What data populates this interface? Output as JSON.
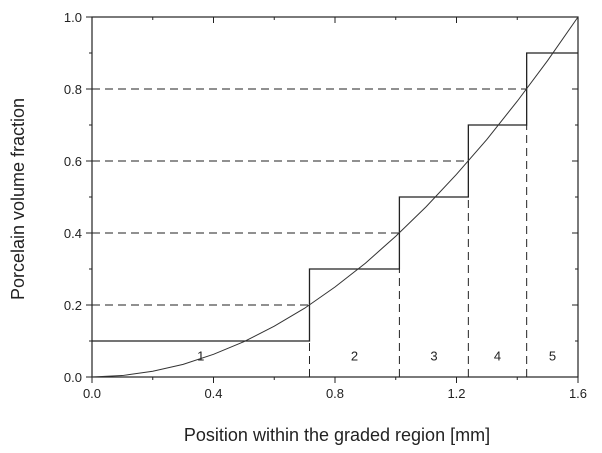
{
  "chart_data": {
    "type": "line",
    "xlabel": "Position within the graded region [mm]",
    "ylabel": "Porcelain volume fraction",
    "xlim": [
      0,
      1.6
    ],
    "ylim": [
      0,
      1.0
    ],
    "xticks": [
      0.0,
      0.4,
      0.8,
      1.2,
      1.6
    ],
    "xtick_labels": [
      "0.0",
      "0.4",
      "0.8",
      "1.2",
      "1.6"
    ],
    "yticks": [
      0.0,
      0.2,
      0.4,
      0.6,
      0.8,
      1.0
    ],
    "ytick_labels": [
      "0.0",
      "0.2",
      "0.4",
      "0.6",
      "0.8",
      "1.0"
    ],
    "grid": false,
    "series": [
      {
        "style": "smooth curve, thin solid",
        "x": [
          0,
          0.1,
          0.2,
          0.3,
          0.4,
          0.5,
          0.6,
          0.7,
          0.8,
          0.9,
          1.0,
          1.1,
          1.2,
          1.3,
          1.4,
          1.5,
          1.6
        ],
        "y": [
          0,
          0.004,
          0.016,
          0.035,
          0.063,
          0.098,
          0.141,
          0.191,
          0.25,
          0.316,
          0.391,
          0.473,
          0.563,
          0.66,
          0.766,
          0.879,
          1.0
        ]
      },
      {
        "style": "step function, solid",
        "steps": [
          {
            "x_start": 0.0,
            "x_end": 0.716,
            "y": 0.1
          },
          {
            "x_start": 0.716,
            "x_end": 1.012,
            "y": 0.3
          },
          {
            "x_start": 1.012,
            "x_end": 1.239,
            "y": 0.5
          },
          {
            "x_start": 1.239,
            "x_end": 1.431,
            "y": 0.7
          },
          {
            "x_start": 1.431,
            "x_end": 1.6,
            "y": 0.9
          }
        ]
      }
    ],
    "dashed_levels": [
      0.2,
      0.4,
      0.6,
      0.8
    ],
    "region_labels": [
      {
        "text": "1",
        "x": 0.358
      },
      {
        "text": "2",
        "x": 0.864
      },
      {
        "text": "3",
        "x": 1.126
      },
      {
        "text": "4",
        "x": 1.335
      },
      {
        "text": "5",
        "x": 1.516
      }
    ],
    "region_label_y": 0.06
  }
}
